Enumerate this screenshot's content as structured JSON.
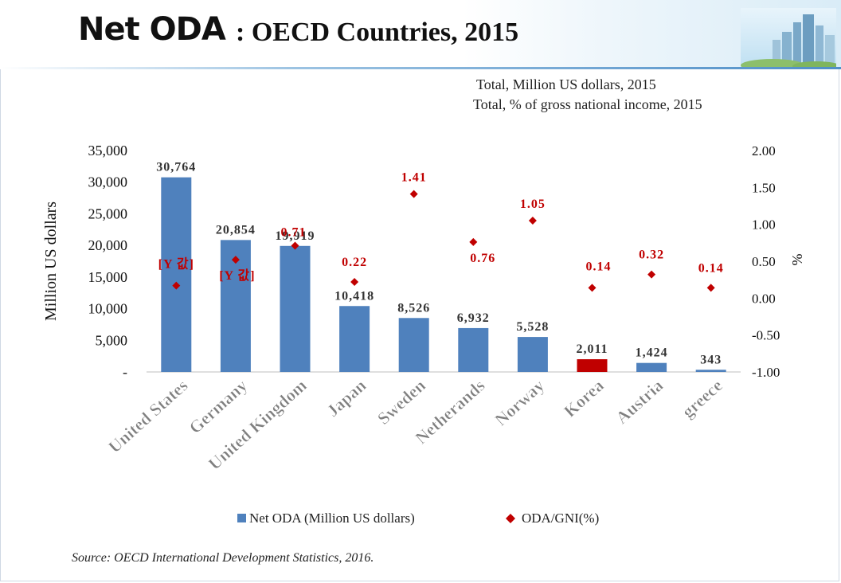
{
  "header": {
    "title_main": "Net ODA",
    "title_sub": ": OECD Countries, 2015",
    "subtitle_1": "Total, Million US dollars, 2015",
    "subtitle_2": "Total, % of gross national income, 2015"
  },
  "source": "Source:  OECD International Development Statistics, 2016.",
  "colors": {
    "bar": "#4f81bd",
    "korea_bar": "#c00000",
    "marker": "#c00000",
    "label_red": "#c00000"
  },
  "chart_data": {
    "type": "bar",
    "categories": [
      "United States",
      "Germany",
      "United Kingdom",
      "Japan",
      "Sweden",
      "Netherands",
      "Norway",
      "Korea",
      "Austria",
      "greece"
    ],
    "series": [
      {
        "name": "Net ODA (Million US dollars)",
        "axis": "left",
        "kind": "bar",
        "values": [
          30764,
          20854,
          19919,
          10418,
          8526,
          6932,
          5528,
          2011,
          1424,
          343
        ],
        "labels": [
          "30,764",
          "20,854",
          "19,919",
          "10,418",
          "8,526",
          "6,932",
          "5,528",
          "2,011",
          "1,424",
          "343"
        ],
        "highlight": "Korea"
      },
      {
        "name": "ODA/GNI(%)",
        "axis": "right",
        "kind": "marker",
        "values": [
          0.17,
          0.52,
          0.71,
          0.22,
          1.41,
          0.76,
          1.05,
          0.14,
          0.32,
          0.14
        ],
        "labels": [
          "[Y 값]",
          "[Y 값]",
          "0.71",
          "0.22",
          "1.41",
          "0.76",
          "1.05",
          "0.14",
          "0.32",
          "0.14"
        ]
      }
    ],
    "ylabel": "Million US dollars",
    "y2label": "%",
    "ylim": [
      0,
      35000
    ],
    "y2lim": [
      -1.0,
      2.0
    ],
    "yticks": [
      "-",
      "5,000",
      "10,000",
      "15,000",
      "20,000",
      "25,000",
      "30,000",
      "35,000"
    ],
    "y2ticks": [
      "-1.00",
      "-0.50",
      "0.00",
      "0.50",
      "1.00",
      "1.50",
      "2.00"
    ],
    "legend_placement": "bottom",
    "grid": false
  }
}
